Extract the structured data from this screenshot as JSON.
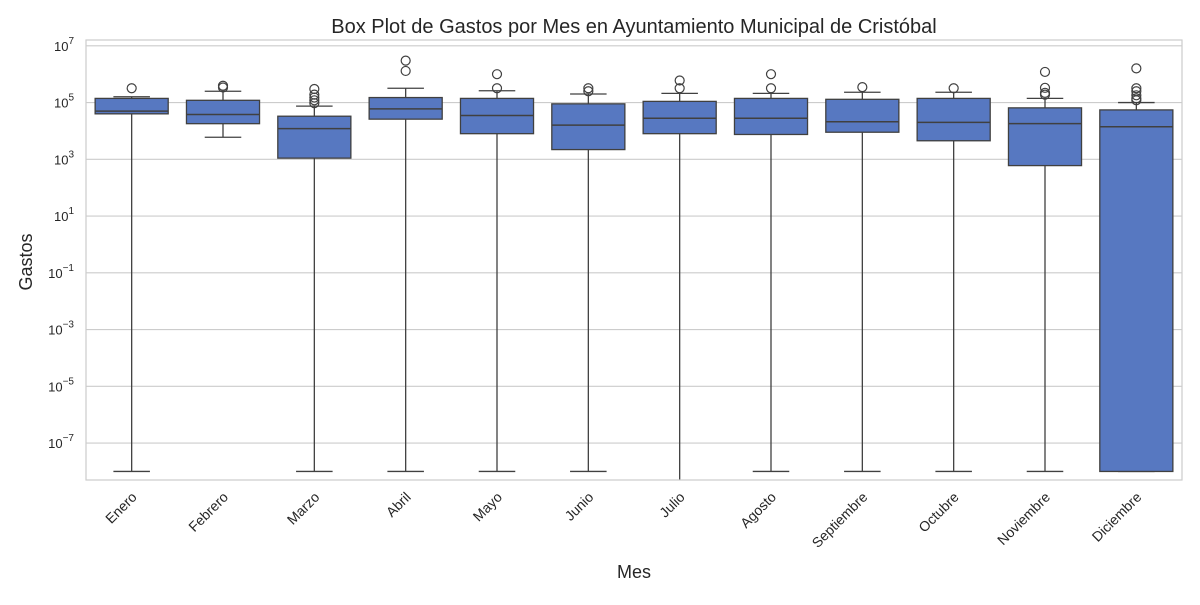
{
  "chart_data": {
    "type": "box",
    "title": "Box Plot de Gastos por Mes en Ayuntamiento Municipal de Cristóbal",
    "xlabel": "Mes",
    "ylabel": "Gastos",
    "yscale": "log",
    "ylim": [
      5e-09,
      16000000.0
    ],
    "grid": "horizontal",
    "yticks": [
      {
        "value": 1e-07,
        "mant": "10",
        "exp": "−7"
      },
      {
        "value": 1e-05,
        "mant": "10",
        "exp": "−5"
      },
      {
        "value": 0.001,
        "mant": "10",
        "exp": "−3"
      },
      {
        "value": 0.1,
        "mant": "10",
        "exp": "−1"
      },
      {
        "value": 10.0,
        "mant": "10",
        "exp": "1"
      },
      {
        "value": 1000.0,
        "mant": "10",
        "exp": "3"
      },
      {
        "value": 100000.0,
        "mant": "10",
        "exp": "5"
      },
      {
        "value": 10000000.0,
        "mant": "10",
        "exp": "7"
      }
    ],
    "color": "#5778c1",
    "categories": [
      "Enero",
      "Febrero",
      "Marzo",
      "Abril",
      "Mayo",
      "Junio",
      "Julio",
      "Agosto",
      "Septiembre",
      "Octubre",
      "Noviembre",
      "Diciembre"
    ],
    "boxes": [
      {
        "whislo": 1e-08,
        "q1": 40000,
        "med": 50000,
        "q3": 140000,
        "whishi": 160000,
        "fliers": [
          320000
        ]
      },
      {
        "whislo": 6000,
        "q1": 18000,
        "med": 38000,
        "q3": 120000,
        "whishi": 250000,
        "fliers": [
          340000,
          390000
        ]
      },
      {
        "whislo": 1e-08,
        "q1": 1100,
        "med": 12000,
        "q3": 33000,
        "whishi": 75000,
        "fliers": [
          95000,
          120000,
          150000,
          190000,
          300000
        ]
      },
      {
        "whislo": 1e-08,
        "q1": 26000,
        "med": 60000,
        "q3": 150000,
        "whishi": 320000,
        "fliers": [
          1300000,
          3000000
        ]
      },
      {
        "whislo": 1e-08,
        "q1": 8000,
        "med": 35000,
        "q3": 140000,
        "whishi": 260000,
        "fliers": [
          320000,
          1000000
        ]
      },
      {
        "whislo": 1e-08,
        "q1": 2200,
        "med": 16000,
        "q3": 90000,
        "whishi": 200000,
        "fliers": [
          250000,
          320000
        ]
      },
      {
        "whislo": 2e-09,
        "q1": 8000,
        "med": 28000,
        "q3": 110000,
        "whishi": 210000,
        "fliers": [
          320000,
          600000
        ]
      },
      {
        "whislo": 1e-08,
        "q1": 7500,
        "med": 28000,
        "q3": 140000,
        "whishi": 210000,
        "fliers": [
          320000,
          1000000
        ]
      },
      {
        "whislo": 1e-08,
        "q1": 9000,
        "med": 21000,
        "q3": 130000,
        "whishi": 230000,
        "fliers": [
          350000
        ]
      },
      {
        "whislo": 1e-08,
        "q1": 4500,
        "med": 20000,
        "q3": 140000,
        "whishi": 230000,
        "fliers": [
          320000
        ]
      },
      {
        "whislo": 1e-08,
        "q1": 600,
        "med": 18000,
        "q3": 65000,
        "whishi": 140000,
        "fliers": [
          190000,
          220000,
          330000,
          1200000
        ]
      },
      {
        "whislo": 1e-08,
        "q1": 1e-08,
        "med": 14000,
        "q3": 55000,
        "whishi": 100000,
        "fliers": [
          120000,
          140000,
          180000,
          250000,
          320000,
          1600000
        ]
      }
    ]
  }
}
